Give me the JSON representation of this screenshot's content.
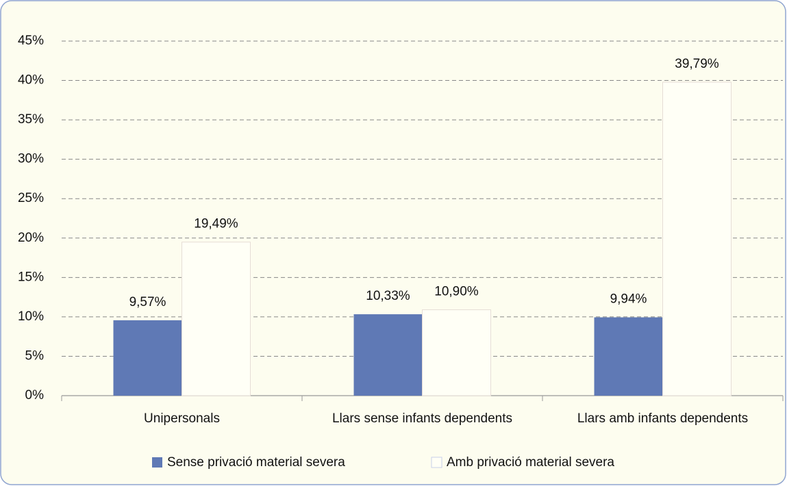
{
  "chart_data": {
    "type": "bar",
    "categories": [
      "Unipersonals",
      "Llars sense infants dependents",
      "Llars amb infants dependents"
    ],
    "series": [
      {
        "name": "Sense privació material severa",
        "color": "#5f79b5",
        "values": [
          9.57,
          10.33,
          9.94
        ],
        "value_labels": [
          "9,57%",
          "10,33%",
          "9,94%"
        ]
      },
      {
        "name": "Amb privació material severa",
        "color": "#fffff6",
        "values": [
          19.49,
          10.9,
          39.79
        ],
        "value_labels": [
          "19,49%",
          "10,90%",
          "39,79%"
        ]
      }
    ],
    "ylim": [
      0,
      45
    ],
    "yticks": [
      {
        "value": 0,
        "label": "0%"
      },
      {
        "value": 5,
        "label": "5%"
      },
      {
        "value": 10,
        "label": "10%"
      },
      {
        "value": 15,
        "label": "15%"
      },
      {
        "value": 20,
        "label": "20%"
      },
      {
        "value": 25,
        "label": "25%"
      },
      {
        "value": 30,
        "label": "30%"
      },
      {
        "value": 35,
        "label": "35%"
      },
      {
        "value": 40,
        "label": "40%"
      },
      {
        "value": 45,
        "label": "45%"
      }
    ],
    "grid": true,
    "legend": "bottom"
  }
}
